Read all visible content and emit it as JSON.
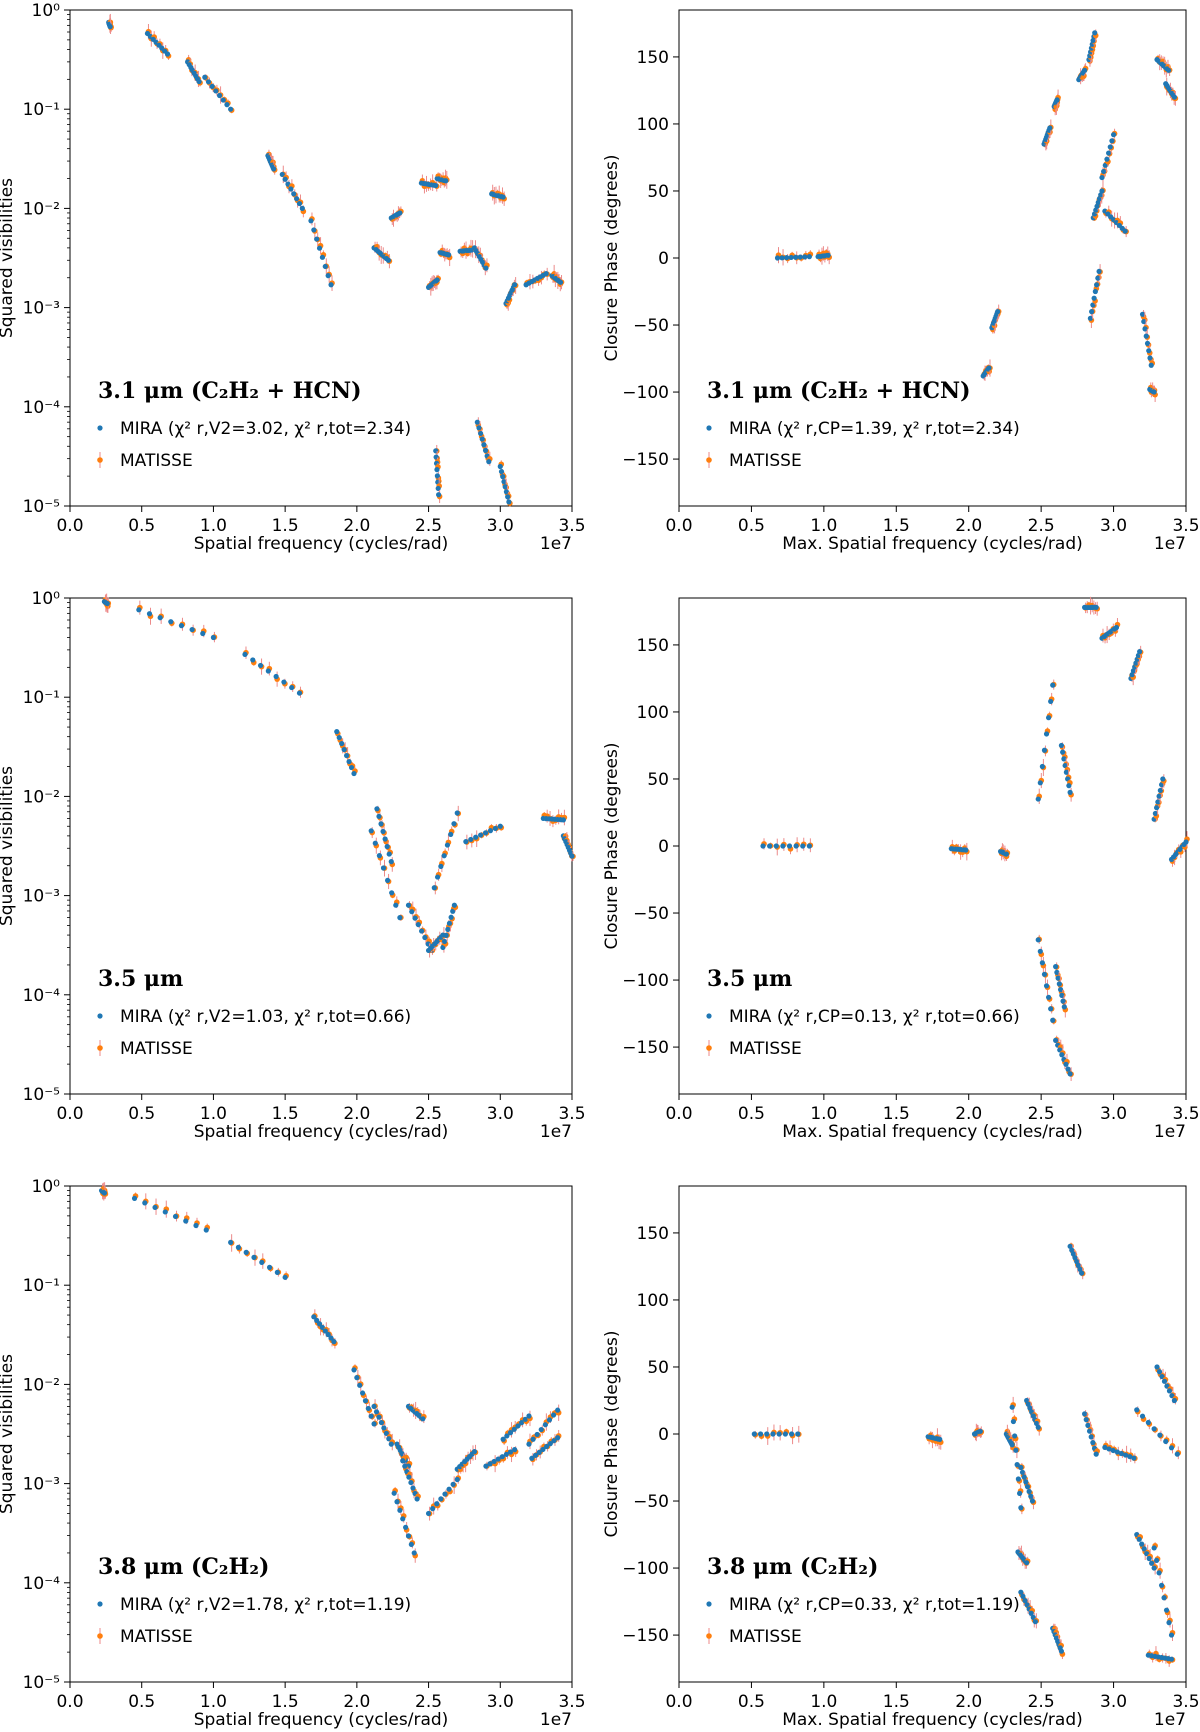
{
  "figure": {
    "marker_colors": {
      "mira": "#1f77b4",
      "matisse": "#ff7f0e",
      "errorbar": "#ec8a8a"
    }
  },
  "chart_data": [
    {
      "id": "v2-3p1",
      "type": "scatter",
      "ylog": true,
      "title": "3.1 μm (C₂H₂ + HCN)",
      "xlabel": "Spatial frequency (cycles/rad)",
      "ylabel": "Squared visibilities",
      "x_multiplier": "1e7",
      "xlim": [
        0,
        3.5
      ],
      "ylim": [
        1e-05,
        1
      ],
      "xticks": [
        "0.0",
        "0.5",
        "1.0",
        "1.5",
        "2.0",
        "2.5",
        "3.0",
        "3.5"
      ],
      "yticks": [
        "10⁰",
        "10⁻¹",
        "10⁻²",
        "10⁻³",
        "10⁻⁴",
        "10⁻⁵"
      ],
      "legend": {
        "mira": "MIRA (χ² r,V2=3.02, χ² r,tot=2.34)",
        "matisse": "MATISSE"
      },
      "segments": [
        [
          0.27,
          0.28,
          0.75,
          0.68
        ],
        [
          0.54,
          0.68,
          0.58,
          0.36
        ],
        [
          0.82,
          0.9,
          0.3,
          0.19
        ],
        [
          0.94,
          1.12,
          0.21,
          0.1
        ],
        [
          1.38,
          1.42,
          0.034,
          0.025
        ],
        [
          1.48,
          1.62,
          0.022,
          0.01
        ],
        [
          1.68,
          1.82,
          0.0075,
          0.0017
        ],
        [
          2.12,
          2.22,
          0.004,
          0.003
        ],
        [
          2.24,
          2.3,
          0.008,
          0.009
        ],
        [
          2.45,
          2.55,
          0.018,
          0.017
        ],
        [
          2.56,
          2.62,
          0.02,
          0.019
        ],
        [
          2.5,
          2.56,
          0.0016,
          0.0019
        ],
        [
          2.58,
          2.64,
          0.0036,
          0.0034
        ],
        [
          2.72,
          2.8,
          0.0037,
          0.0038
        ],
        [
          2.82,
          2.9,
          0.004,
          0.0025
        ],
        [
          2.94,
          3.02,
          0.014,
          0.013
        ],
        [
          3.04,
          3.1,
          0.0011,
          0.0017
        ],
        [
          3.18,
          3.32,
          0.0017,
          0.0022
        ],
        [
          3.36,
          3.42,
          0.0021,
          0.0018
        ],
        [
          2.55,
          2.57,
          3.6e-05,
          1.3e-05
        ],
        [
          2.84,
          2.92,
          7e-05,
          2.8e-05
        ],
        [
          3.0,
          3.06,
          2.5e-05,
          1.1e-05
        ]
      ]
    },
    {
      "id": "cp-3p1",
      "type": "scatter",
      "ylog": false,
      "title": "3.1 μm (C₂H₂ + HCN)",
      "xlabel": "Max. Spatial frequency (cycles/rad)",
      "ylabel": "Closure Phase (degrees)",
      "x_multiplier": "1e7",
      "xlim": [
        0,
        3.5
      ],
      "ylim": [
        -185,
        185
      ],
      "xticks": [
        "0.0",
        "0.5",
        "1.0",
        "1.5",
        "2.0",
        "2.5",
        "3.0",
        "3.5"
      ],
      "yticks": [
        "150",
        "100",
        "50",
        "0",
        "−50",
        "−100",
        "−150"
      ],
      "legend": {
        "mira": "MIRA (χ² r,CP=1.39, χ² r,tot=2.34)",
        "matisse": "MATISSE"
      },
      "segments": [
        [
          0.68,
          0.9,
          0,
          1
        ],
        [
          0.96,
          1.03,
          1,
          2
        ],
        [
          2.1,
          2.14,
          -88,
          -82
        ],
        [
          2.16,
          2.2,
          -52,
          -40
        ],
        [
          2.52,
          2.56,
          85,
          97
        ],
        [
          2.59,
          2.61,
          113,
          118
        ],
        [
          2.76,
          2.8,
          133,
          140
        ],
        [
          2.83,
          2.87,
          148,
          168
        ],
        [
          2.84,
          2.9,
          -45,
          -10
        ],
        [
          2.86,
          2.92,
          30,
          50
        ],
        [
          2.92,
          3.0,
          60,
          92
        ],
        [
          2.94,
          3.08,
          35,
          20
        ],
        [
          3.2,
          3.26,
          -42,
          -80
        ],
        [
          3.25,
          3.28,
          -98,
          -100
        ],
        [
          3.3,
          3.38,
          148,
          140
        ],
        [
          3.36,
          3.42,
          130,
          120
        ]
      ]
    },
    {
      "id": "v2-3p5",
      "type": "scatter",
      "ylog": true,
      "title": "3.5 μm",
      "xlabel": "Spatial frequency (cycles/rad)",
      "ylabel": "Squared visibilities",
      "x_multiplier": "1e7",
      "xlim": [
        0,
        3.5
      ],
      "ylim": [
        1e-05,
        1
      ],
      "xticks": [
        "0.0",
        "0.5",
        "1.0",
        "1.5",
        "2.0",
        "2.5",
        "3.0",
        "3.5"
      ],
      "yticks": [
        "10⁰",
        "10⁻¹",
        "10⁻²",
        "10⁻³",
        "10⁻⁴",
        "10⁻⁵"
      ],
      "legend": {
        "mira": "MIRA (χ² r,V2=1.03, χ² r,tot=0.66)",
        "matisse": "MATISSE"
      },
      "segments": [
        [
          0.24,
          0.26,
          0.92,
          0.88
        ],
        [
          0.48,
          1.0,
          0.76,
          0.4
        ],
        [
          1.22,
          1.6,
          0.27,
          0.11
        ],
        [
          1.86,
          1.98,
          0.045,
          0.017
        ],
        [
          2.14,
          2.24,
          0.0075,
          0.0022
        ],
        [
          2.1,
          2.3,
          0.0045,
          0.0006
        ],
        [
          2.36,
          2.52,
          0.0008,
          0.00028
        ],
        [
          2.5,
          2.6,
          0.00028,
          0.0004
        ],
        [
          2.54,
          2.7,
          0.0012,
          0.0068
        ],
        [
          2.6,
          2.68,
          0.0003,
          0.0008
        ],
        [
          2.76,
          3.0,
          0.0035,
          0.005
        ],
        [
          3.3,
          3.44,
          0.006,
          0.0058
        ],
        [
          3.44,
          3.5,
          0.004,
          0.0025
        ]
      ]
    },
    {
      "id": "cp-3p5",
      "type": "scatter",
      "ylog": false,
      "title": "3.5 μm",
      "xlabel": "Max. Spatial frequency (cycles/rad)",
      "ylabel": "Closure Phase (degrees)",
      "x_multiplier": "1e7",
      "xlim": [
        0,
        3.5
      ],
      "ylim": [
        -185,
        185
      ],
      "xticks": [
        "0.0",
        "0.5",
        "1.0",
        "1.5",
        "2.0",
        "2.5",
        "3.0",
        "3.5"
      ],
      "yticks": [
        "150",
        "100",
        "50",
        "0",
        "−50",
        "−100",
        "−150"
      ],
      "legend": {
        "mira": "MIRA (χ² r,CP=0.13, χ² r,tot=0.66)",
        "matisse": "MATISSE"
      },
      "segments": [
        [
          0.58,
          0.9,
          0,
          0
        ],
        [
          1.88,
          1.98,
          -2,
          -3
        ],
        [
          2.22,
          2.26,
          -4,
          -6
        ],
        [
          2.48,
          2.58,
          35,
          120
        ],
        [
          2.64,
          2.7,
          75,
          40
        ],
        [
          2.48,
          2.58,
          -70,
          -130
        ],
        [
          2.6,
          2.66,
          -90,
          -120
        ],
        [
          2.6,
          2.7,
          -145,
          -170
        ],
        [
          2.8,
          2.88,
          178,
          178
        ],
        [
          2.92,
          3.02,
          155,
          163
        ],
        [
          3.12,
          3.18,
          125,
          145
        ],
        [
          3.28,
          3.34,
          20,
          50
        ],
        [
          3.4,
          3.5,
          -10,
          3
        ]
      ]
    },
    {
      "id": "v2-3p8",
      "type": "scatter",
      "ylog": true,
      "title": "3.8 μm (C₂H₂)",
      "xlabel": "Spatial frequency (cycles/rad)",
      "ylabel": "Squared visibilities",
      "x_multiplier": "1e7",
      "xlim": [
        0,
        3.5
      ],
      "ylim": [
        1e-05,
        1
      ],
      "xticks": [
        "0.0",
        "0.5",
        "1.0",
        "1.5",
        "2.0",
        "2.5",
        "3.0",
        "3.5"
      ],
      "yticks": [
        "10⁰",
        "10⁻¹",
        "10⁻²",
        "10⁻³",
        "10⁻⁴",
        "10⁻⁵"
      ],
      "legend": {
        "mira": "MIRA (χ² r,V2=1.78, χ² r,tot=1.19)",
        "matisse": "MATISSE"
      },
      "segments": [
        [
          0.22,
          0.24,
          0.9,
          0.85
        ],
        [
          0.45,
          0.95,
          0.75,
          0.36
        ],
        [
          1.12,
          1.5,
          0.27,
          0.12
        ],
        [
          1.7,
          1.84,
          0.048,
          0.027
        ],
        [
          1.98,
          2.12,
          0.014,
          0.004
        ],
        [
          2.12,
          2.24,
          0.006,
          0.0025
        ],
        [
          2.28,
          2.36,
          0.0025,
          0.0015
        ],
        [
          2.32,
          2.42,
          0.0017,
          0.0007
        ],
        [
          2.26,
          2.4,
          0.0008,
          0.0002
        ],
        [
          2.36,
          2.46,
          0.006,
          0.0045
        ],
        [
          2.5,
          2.7,
          0.0005,
          0.0011
        ],
        [
          2.7,
          2.82,
          0.0014,
          0.0021
        ],
        [
          2.9,
          3.1,
          0.0015,
          0.0022
        ],
        [
          3.02,
          3.2,
          0.0028,
          0.0048
        ],
        [
          3.2,
          3.4,
          0.0025,
          0.0055
        ],
        [
          3.22,
          3.4,
          0.0018,
          0.0029
        ]
      ]
    },
    {
      "id": "cp-3p8",
      "type": "scatter",
      "ylog": false,
      "title": "3.8 μm (C₂H₂)",
      "xlabel": "Max. Spatial frequency (cycles/rad)",
      "ylabel": "Closure Phase (degrees)",
      "x_multiplier": "1e7",
      "xlim": [
        0,
        3.5
      ],
      "ylim": [
        -185,
        185
      ],
      "xticks": [
        "0.0",
        "0.5",
        "1.0",
        "1.5",
        "2.0",
        "2.5",
        "3.0",
        "3.5"
      ],
      "yticks": [
        "150",
        "100",
        "50",
        "0",
        "−50",
        "−100",
        "−150"
      ],
      "legend": {
        "mira": "MIRA (χ² r,CP=0.33, χ² r,tot=1.19)",
        "matisse": "MATISSE"
      },
      "segments": [
        [
          0.52,
          0.82,
          0,
          0
        ],
        [
          1.72,
          1.8,
          -2,
          -4
        ],
        [
          2.04,
          2.08,
          0,
          2
        ],
        [
          2.26,
          2.3,
          0,
          -8
        ],
        [
          2.3,
          2.36,
          20,
          -55
        ],
        [
          2.36,
          2.44,
          -25,
          -50
        ],
        [
          2.4,
          2.48,
          25,
          5
        ],
        [
          2.34,
          2.4,
          -88,
          -96
        ],
        [
          2.36,
          2.46,
          -118,
          -140
        ],
        [
          2.58,
          2.64,
          -145,
          -162
        ],
        [
          2.7,
          2.78,
          140,
          120
        ],
        [
          2.8,
          2.88,
          15,
          -15
        ],
        [
          2.94,
          3.14,
          -10,
          -18
        ],
        [
          3.16,
          3.44,
          18,
          -15
        ],
        [
          3.3,
          3.42,
          50,
          25
        ],
        [
          3.16,
          3.28,
          -75,
          -100
        ],
        [
          3.28,
          3.4,
          -85,
          -150
        ],
        [
          3.24,
          3.4,
          -165,
          -168
        ]
      ]
    }
  ]
}
